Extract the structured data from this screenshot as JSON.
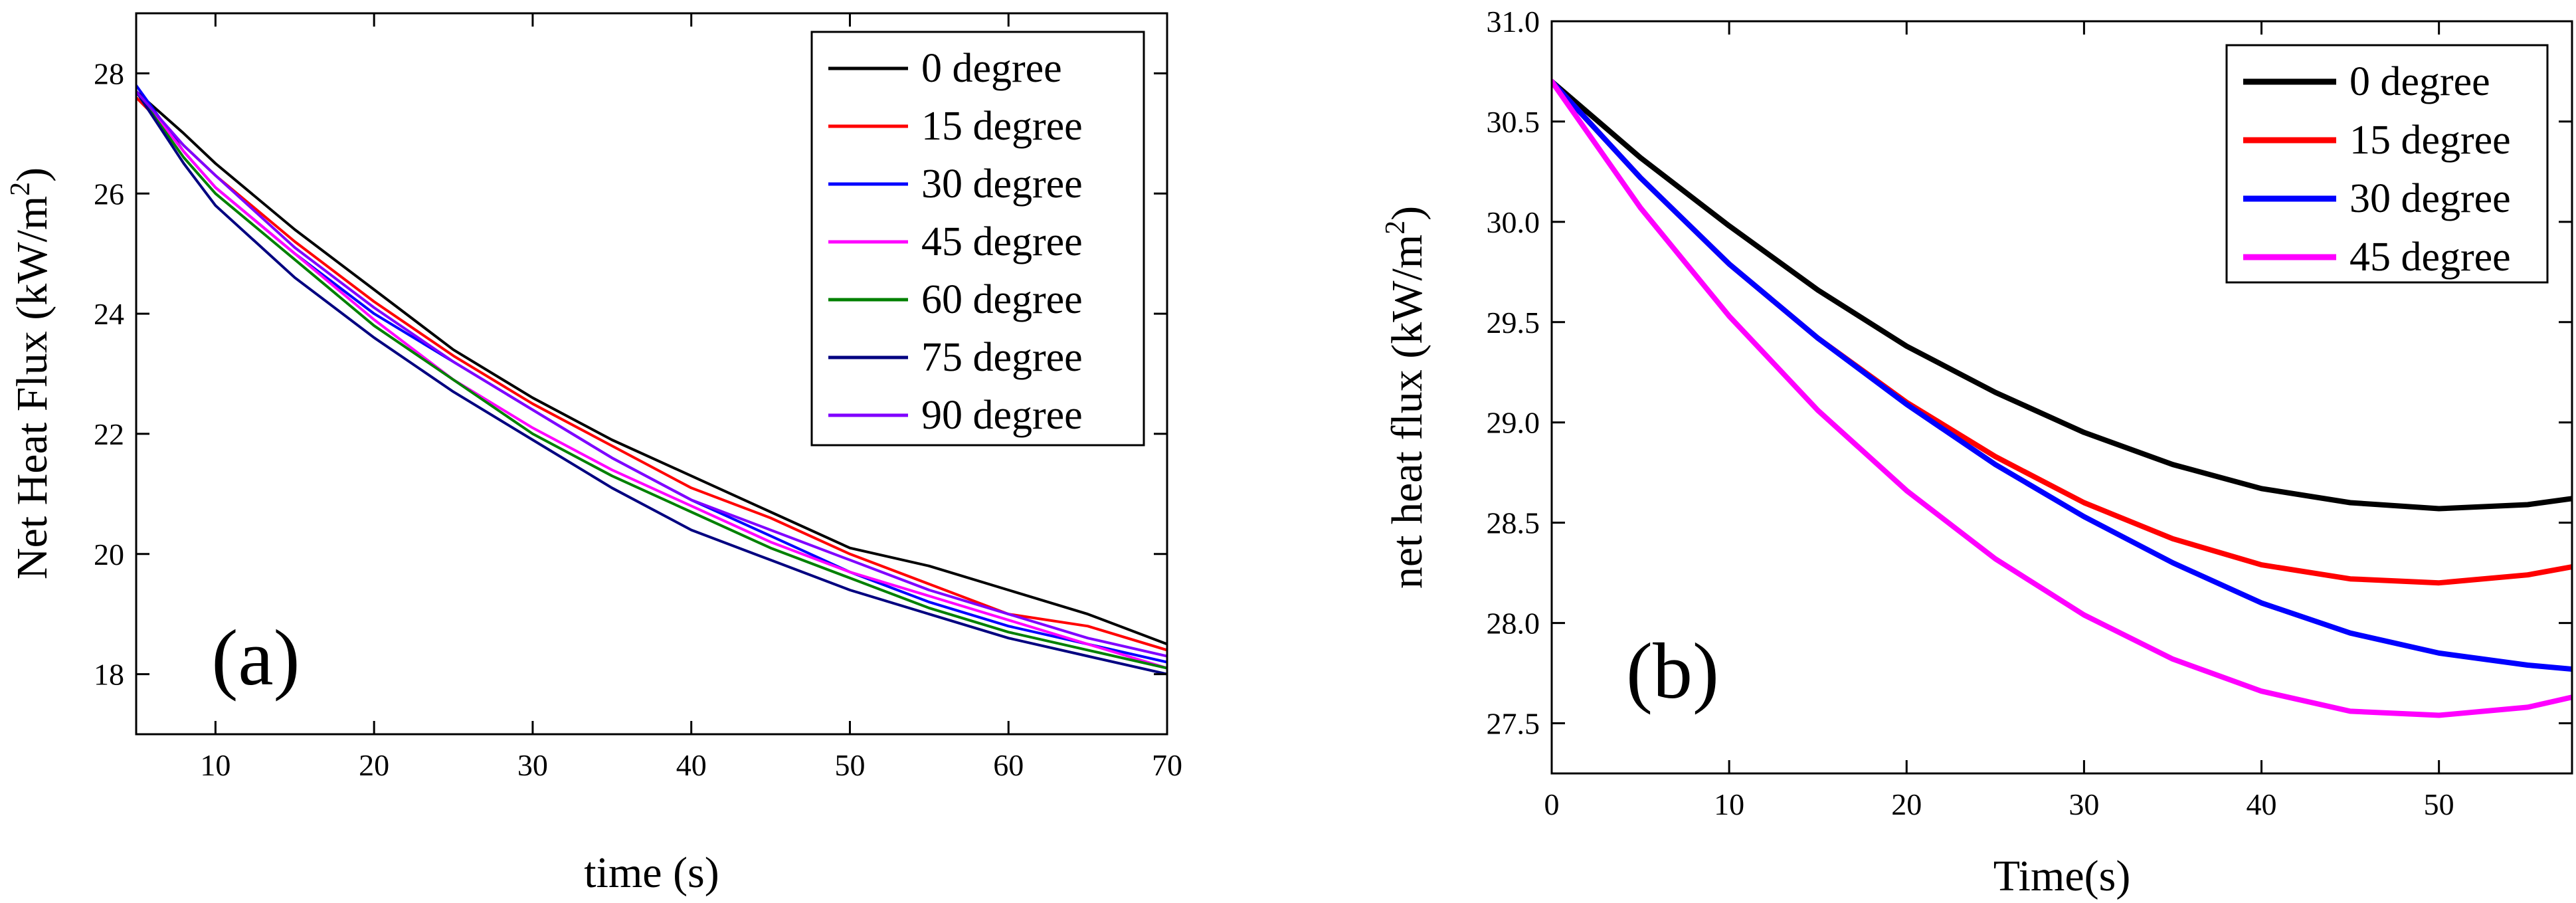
{
  "chart_data": [
    {
      "type": "line",
      "panel_label": "(a)",
      "xlabel": "time (s)",
      "ylabel": "Net Heat Flux (kW/m",
      "ylabel_sup": "2",
      "ylabel_close": ")",
      "xlim": [
        5,
        70
      ],
      "ylim": [
        17,
        29
      ],
      "xticks": [
        10,
        20,
        30,
        40,
        50,
        60,
        70
      ],
      "yticks": [
        18,
        20,
        22,
        24,
        26,
        28
      ],
      "grid": false,
      "legend_position": "top-right",
      "series": [
        {
          "name": "0  degree",
          "color": "#000000",
          "x": [
            5,
            8,
            10,
            15,
            20,
            25,
            30,
            35,
            40,
            45,
            50,
            55,
            60,
            65,
            70
          ],
          "y": [
            27.7,
            27.0,
            26.5,
            25.4,
            24.4,
            23.4,
            22.6,
            21.9,
            21.3,
            20.7,
            20.1,
            19.8,
            19.4,
            19.0,
            18.5
          ]
        },
        {
          "name": "15 degree",
          "color": "#ff0000",
          "x": [
            5,
            8,
            10,
            15,
            20,
            25,
            30,
            35,
            40,
            45,
            50,
            55,
            60,
            65,
            70
          ],
          "y": [
            27.6,
            26.8,
            26.3,
            25.2,
            24.2,
            23.3,
            22.5,
            21.8,
            21.1,
            20.6,
            20.0,
            19.5,
            19.0,
            18.8,
            18.4
          ]
        },
        {
          "name": "30 degree",
          "color": "#0000ff",
          "x": [
            5,
            8,
            10,
            15,
            20,
            25,
            30,
            35,
            40,
            45,
            50,
            55,
            60,
            65,
            70
          ],
          "y": [
            27.8,
            26.7,
            26.1,
            25.0,
            24.0,
            23.2,
            22.4,
            21.6,
            20.9,
            20.3,
            19.7,
            19.2,
            18.8,
            18.5,
            18.2
          ]
        },
        {
          "name": "45 degree",
          "color": "#ff00ff",
          "x": [
            5,
            8,
            10,
            15,
            20,
            25,
            30,
            35,
            40,
            45,
            50,
            55,
            60,
            65,
            70
          ],
          "y": [
            27.7,
            26.7,
            26.1,
            25.0,
            23.9,
            22.9,
            22.1,
            21.4,
            20.8,
            20.2,
            19.7,
            19.3,
            18.9,
            18.5,
            18.1
          ]
        },
        {
          "name": "60 degree",
          "color": "#008000",
          "x": [
            5,
            8,
            10,
            15,
            20,
            25,
            30,
            35,
            40,
            45,
            50,
            55,
            60,
            65,
            70
          ],
          "y": [
            27.7,
            26.6,
            26.0,
            24.9,
            23.8,
            22.9,
            22.0,
            21.3,
            20.7,
            20.1,
            19.6,
            19.1,
            18.7,
            18.4,
            18.1
          ]
        },
        {
          "name": "75 degree",
          "color": "#000080",
          "x": [
            5,
            8,
            10,
            15,
            20,
            25,
            30,
            35,
            40,
            45,
            50,
            55,
            60,
            65,
            70
          ],
          "y": [
            27.7,
            26.5,
            25.8,
            24.6,
            23.6,
            22.7,
            21.9,
            21.1,
            20.4,
            19.9,
            19.4,
            19.0,
            18.6,
            18.3,
            18.0
          ]
        },
        {
          "name": "90 degree",
          "color": "#8000ff",
          "x": [
            5,
            8,
            10,
            15,
            20,
            25,
            30,
            35,
            40,
            45,
            50,
            55,
            60,
            65,
            70
          ],
          "y": [
            27.7,
            26.8,
            26.3,
            25.1,
            24.1,
            23.2,
            22.4,
            21.6,
            20.9,
            20.4,
            19.9,
            19.4,
            19.0,
            18.6,
            18.3
          ]
        }
      ]
    },
    {
      "type": "line",
      "panel_label": "(b)",
      "xlabel": "Time(s)",
      "ylabel": "net heat flux (kW/m",
      "ylabel_sup": "2",
      "ylabel_close": ")",
      "xlim": [
        0,
        57.5
      ],
      "ylim": [
        27.25,
        31.0
      ],
      "xticks": [
        0,
        10,
        20,
        30,
        40,
        50
      ],
      "yticks": [
        27.5,
        28.0,
        28.5,
        29.0,
        29.5,
        30.0,
        30.5,
        31.0
      ],
      "ytick_labels": [
        "27.5",
        "28.0",
        "28.5",
        "29.0",
        "29.5",
        "30.0",
        "30.5",
        "31.0"
      ],
      "grid": false,
      "legend_position": "top-right",
      "series": [
        {
          "name": "0   degree",
          "color": "#000000",
          "x": [
            0,
            5,
            10,
            15,
            20,
            25,
            30,
            35,
            40,
            45,
            50,
            55,
            57.5
          ],
          "y": [
            30.7,
            30.32,
            29.98,
            29.66,
            29.38,
            29.15,
            28.95,
            28.79,
            28.67,
            28.6,
            28.57,
            28.59,
            28.62
          ]
        },
        {
          "name": "15 degree",
          "color": "#ff0000",
          "x": [
            0,
            5,
            10,
            15,
            20,
            25,
            30,
            35,
            40,
            45,
            50,
            55,
            57.5
          ],
          "y": [
            30.7,
            30.22,
            29.79,
            29.42,
            29.1,
            28.83,
            28.6,
            28.42,
            28.29,
            28.22,
            28.2,
            28.24,
            28.28
          ]
        },
        {
          "name": "30 degree",
          "color": "#0000ff",
          "x": [
            0,
            5,
            10,
            15,
            20,
            25,
            30,
            35,
            40,
            45,
            50,
            55,
            57.5
          ],
          "y": [
            30.7,
            30.22,
            29.79,
            29.42,
            29.09,
            28.79,
            28.53,
            28.3,
            28.1,
            27.95,
            27.85,
            27.79,
            27.77
          ]
        },
        {
          "name": "45 degree",
          "color": "#ff00ff",
          "x": [
            0,
            5,
            10,
            15,
            20,
            25,
            30,
            35,
            40,
            45,
            50,
            55,
            57.5
          ],
          "y": [
            30.7,
            30.07,
            29.53,
            29.06,
            28.66,
            28.32,
            28.04,
            27.82,
            27.66,
            27.56,
            27.54,
            27.58,
            27.63
          ]
        }
      ]
    }
  ]
}
